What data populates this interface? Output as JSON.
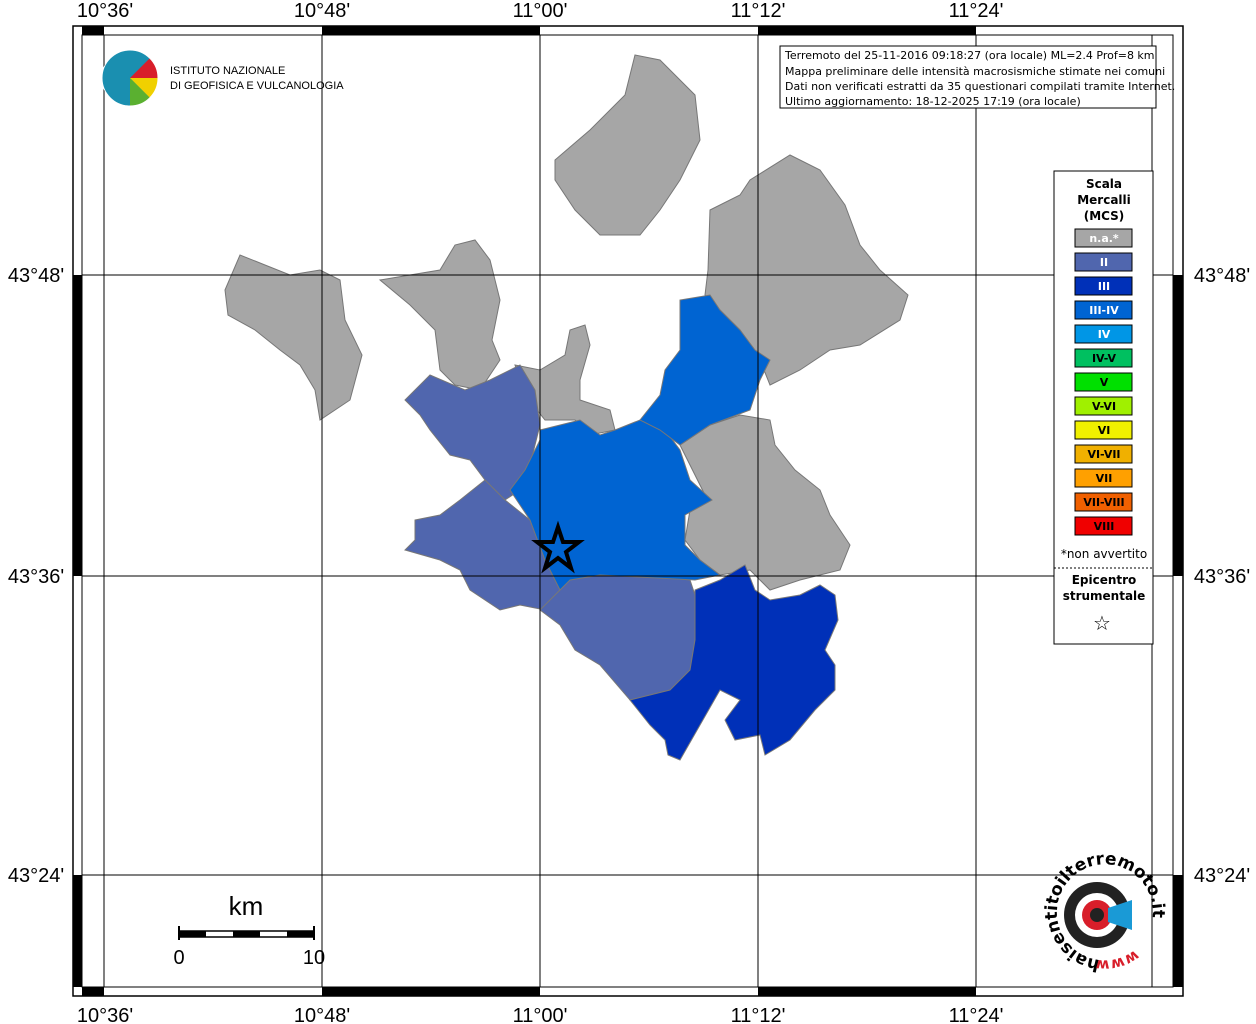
{
  "header": {
    "institute": [
      "ISTITUTO NAZIONALE",
      "DI GEOFISICA E VULCANOLOGIA"
    ]
  },
  "info": [
    "Terremoto del 25-11-2016 09:18:27 (ora locale) ML=2.4 Prof=8 km",
    "Mappa preliminare delle intensità macrosismiche stimate nei comuni",
    "Dati non verificati estratti da 35 questionari compilati tramite Internet.",
    "Ultimo aggiornamento: 18-12-2025 17:19 (ora locale)"
  ],
  "grid": {
    "lon_labels": [
      "10°36'",
      "10°48'",
      "11°00'",
      "11°12'",
      "11°24'"
    ],
    "lat_labels": [
      "43°48'",
      "43°36'",
      "43°24'"
    ]
  },
  "legend": {
    "title": [
      "Scala",
      "Mercalli",
      "(MCS)"
    ],
    "classes": [
      {
        "label": "n.a.*",
        "color": "#a6a6a6"
      },
      {
        "label": "II",
        "color": "#5066ae"
      },
      {
        "label": "III",
        "color": "#0030b8"
      },
      {
        "label": "III-IV",
        "color": "#0064d2"
      },
      {
        "label": "IV",
        "color": "#0096e6"
      },
      {
        "label": "IV-V",
        "color": "#00c060"
      },
      {
        "label": "V",
        "color": "#00e000"
      },
      {
        "label": "V-VI",
        "color": "#a0f000"
      },
      {
        "label": "VI",
        "color": "#f0f000"
      },
      {
        "label": "VI-VII",
        "color": "#f0b000"
      },
      {
        "label": "VII",
        "color": "#ffa000"
      },
      {
        "label": "VII-VIII",
        "color": "#f06000"
      },
      {
        "label": "VIII",
        "color": "#f00000"
      }
    ],
    "note": "*non avvertito",
    "epicenter": [
      "Epicentro",
      "strumentale"
    ],
    "epicenter_symbol": "☆"
  },
  "scale": {
    "unit": "km",
    "start": "0",
    "end": "10"
  },
  "logo": {
    "site": "haisentitoilterremoto.it",
    "prefix": "www."
  }
}
